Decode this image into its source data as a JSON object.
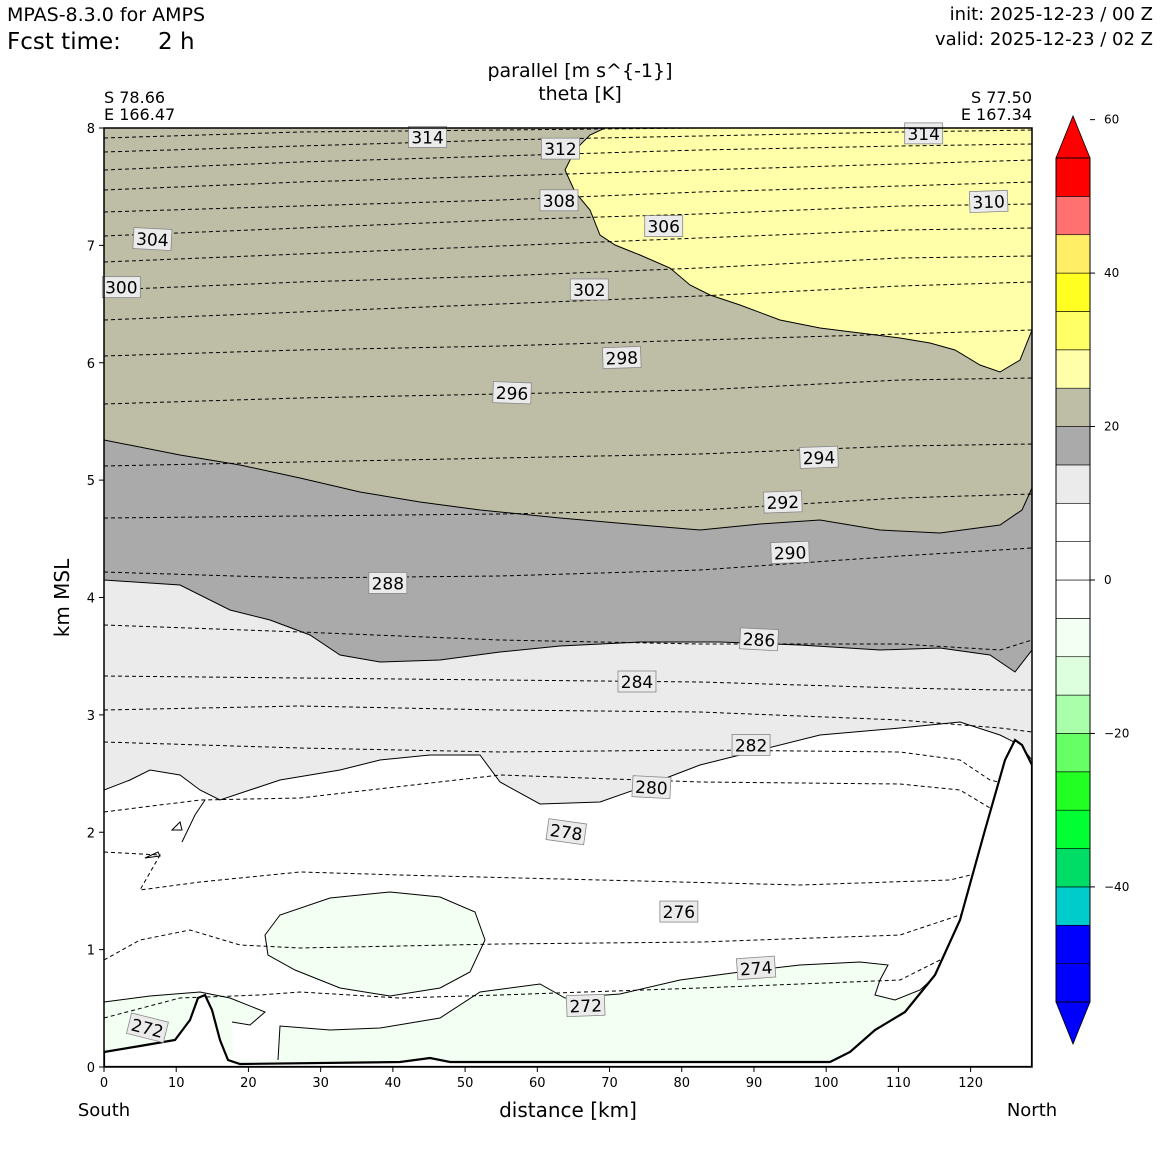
{
  "header": {
    "model": "MPAS-8.3.0 for AMPS",
    "fcst_label": "Fcst time:",
    "fcst_value": "2 h",
    "init": "init: 2025-12-23 / 00 Z",
    "valid": "valid: 2025-12-23 / 02 Z"
  },
  "chart_data": {
    "type": "cross-section",
    "title": "parallel [m s^{-1}]",
    "subtitle": "theta [K]",
    "xlabel": "distance [km]",
    "ylabel": "km MSL",
    "xlim": [
      0,
      128.5
    ],
    "ylim": [
      0,
      8
    ],
    "x_ticks": [
      "0",
      "10",
      "20",
      "30",
      "40",
      "50",
      "60",
      "70",
      "80",
      "90",
      "100",
      "110",
      "120"
    ],
    "y_ticks": [
      "0",
      "1",
      "2",
      "3",
      "4",
      "5",
      "6",
      "7",
      "8"
    ],
    "left_end": {
      "direction": "South",
      "lat": "S 78.66",
      "lon": "E 166.47"
    },
    "right_end": {
      "direction": "North",
      "lat": "S 77.50",
      "lon": "E 167.34"
    },
    "colorbar": {
      "min": -60,
      "max": 60,
      "ticks": [
        "60",
        "40",
        "20",
        "0",
        "−20",
        "−40"
      ],
      "levels": [
        -60,
        -55,
        -50,
        -45,
        -40,
        -35,
        -30,
        -25,
        -20,
        -15,
        -10,
        -5,
        0,
        5,
        10,
        15,
        20,
        25,
        30,
        35,
        40,
        45,
        50,
        55,
        60
      ],
      "colors": [
        "#0000ff",
        "#0000ff",
        "#0000ff",
        "#00cccc",
        "#00dd66",
        "#00ff33",
        "#22ff22",
        "#66ff66",
        "#aaffaa",
        "#ddffdd",
        "#f2fff2",
        "#ffffff",
        "#ffffff",
        "#ffffff",
        "#ebebeb",
        "#aaaaaa",
        "#bebea6",
        "#ffffaa",
        "#ffff66",
        "#ffff22",
        "#ffee66",
        "#ff7070",
        "#ff0000",
        "#ff0000"
      ]
    },
    "wind_fill_colors": {
      "band_20_25": "#bebea6",
      "band_25_30": "#ffffaa",
      "band_15_20": "#aaaaaa",
      "band_10_15": "#ebebeb",
      "band_neg5_neg10": "#f2fff2"
    },
    "theta_labels": [
      {
        "text": "314",
        "x": 44.8,
        "y": 7.92,
        "rot": 0
      },
      {
        "text": "314",
        "x": 113.5,
        "y": 7.95,
        "rot": 0
      },
      {
        "text": "312",
        "x": 63.2,
        "y": 7.82,
        "rot": 0
      },
      {
        "text": "310",
        "x": 122.5,
        "y": 7.37,
        "rot": -2
      },
      {
        "text": "308",
        "x": 63.0,
        "y": 7.38,
        "rot": 0
      },
      {
        "text": "306",
        "x": 77.5,
        "y": 7.16,
        "rot": 0
      },
      {
        "text": "304",
        "x": 6.7,
        "y": 7.05,
        "rot": 3
      },
      {
        "text": "302",
        "x": 67.2,
        "y": 6.62,
        "rot": 0
      },
      {
        "text": "300",
        "x": 2.4,
        "y": 6.64,
        "rot": 0
      },
      {
        "text": "298",
        "x": 71.7,
        "y": 6.04,
        "rot": -2
      },
      {
        "text": "296",
        "x": 56.5,
        "y": 5.74,
        "rot": 2
      },
      {
        "text": "294",
        "x": 99.0,
        "y": 5.19,
        "rot": -2
      },
      {
        "text": "292",
        "x": 94.0,
        "y": 4.81,
        "rot": -2
      },
      {
        "text": "290",
        "x": 95.0,
        "y": 4.38,
        "rot": -2
      },
      {
        "text": "288",
        "x": 39.3,
        "y": 4.12,
        "rot": 0
      },
      {
        "text": "286",
        "x": 90.7,
        "y": 3.64,
        "rot": 3
      },
      {
        "text": "284",
        "x": 73.8,
        "y": 3.28,
        "rot": 0
      },
      {
        "text": "282",
        "x": 89.6,
        "y": 2.74,
        "rot": 0
      },
      {
        "text": "280",
        "x": 75.8,
        "y": 2.38,
        "rot": 3
      },
      {
        "text": "278",
        "x": 64.0,
        "y": 2.0,
        "rot": 8
      },
      {
        "text": "276",
        "x": 79.6,
        "y": 1.32,
        "rot": 0
      },
      {
        "text": "274",
        "x": 90.3,
        "y": 0.84,
        "rot": -4
      },
      {
        "text": "272",
        "x": 66.7,
        "y": 0.52,
        "rot": -2
      },
      {
        "text": "272",
        "x": 6.0,
        "y": 0.33,
        "rot": 14
      }
    ]
  }
}
